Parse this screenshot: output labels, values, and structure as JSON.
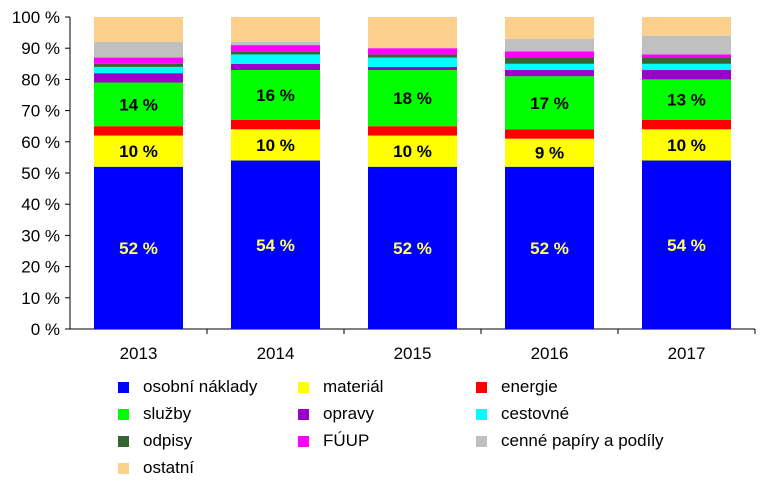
{
  "chart_data": {
    "type": "stacked-bar-100",
    "categories": [
      "2013",
      "2014",
      "2015",
      "2016",
      "2017"
    ],
    "ylim": [
      0,
      100
    ],
    "yticks": [
      "0 %",
      "10 %",
      "20 %",
      "30 %",
      "40 %",
      "50 %",
      "60 %",
      "70 %",
      "80 %",
      "90 %",
      "100 %"
    ],
    "legend_position": "bottom",
    "series": [
      {
        "name": "osobní náklady",
        "color": "#0000ff",
        "values": [
          52,
          54,
          52,
          52,
          54
        ],
        "labels": [
          "52 %",
          "54 %",
          "52 %",
          "52 %",
          "54 %"
        ],
        "label_color": "#ffff66"
      },
      {
        "name": "materiál",
        "color": "#ffff00",
        "values": [
          10,
          10,
          10,
          9,
          10
        ],
        "labels": [
          "10 %",
          "10 %",
          "10 %",
          "9 %",
          "10 %"
        ],
        "label_color": "#000000"
      },
      {
        "name": "energie",
        "color": "#ff0000",
        "values": [
          3,
          3,
          3,
          3,
          3
        ],
        "labels": null
      },
      {
        "name": "služby",
        "color": "#00ff00",
        "values": [
          14,
          16,
          18,
          17,
          13
        ],
        "labels": [
          "14 %",
          "16 %",
          "18 %",
          "17 %",
          "13 %"
        ],
        "label_color": "#000000"
      },
      {
        "name": "opravy",
        "color": "#9900cc",
        "values": [
          3,
          2,
          1,
          2,
          3
        ],
        "labels": null
      },
      {
        "name": "cestovné",
        "color": "#00ffff",
        "values": [
          2,
          3,
          3,
          2,
          2
        ],
        "labels": null
      },
      {
        "name": "odpisy",
        "color": "#336633",
        "values": [
          1,
          1,
          1,
          2,
          2
        ],
        "labels": null
      },
      {
        "name": "FÚUP",
        "color": "#ff00ff",
        "values": [
          2,
          2,
          2,
          2,
          1
        ],
        "labels": null
      },
      {
        "name": "cenné papíry a podíly",
        "color": "#c0c0c0",
        "values": [
          5,
          1,
          0,
          4,
          6
        ],
        "labels": null
      },
      {
        "name": "ostatní",
        "color": "#fad08c",
        "values": [
          8,
          8,
          10,
          7,
          6
        ],
        "labels": null
      }
    ]
  }
}
